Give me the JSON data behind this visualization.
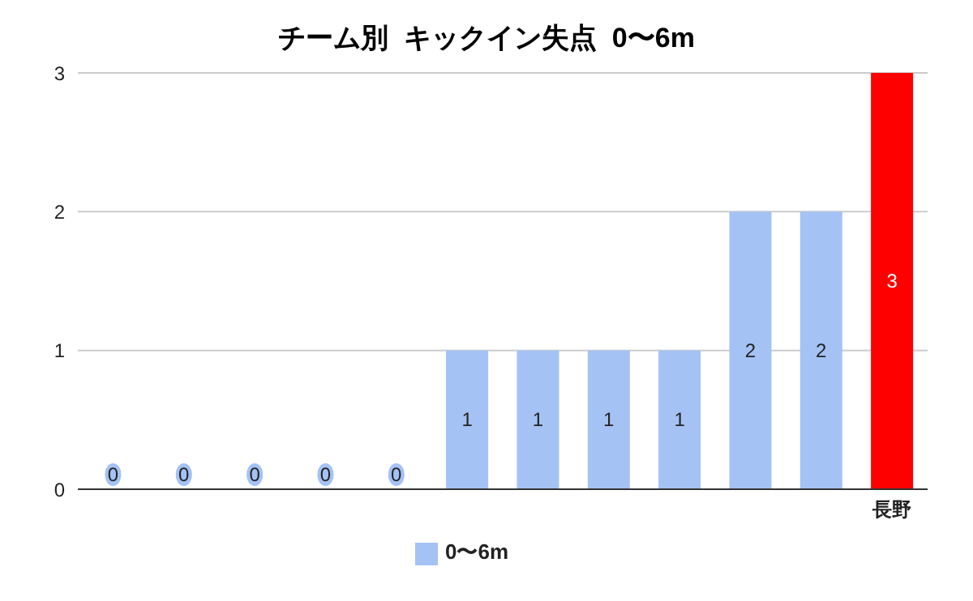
{
  "chart_data": {
    "type": "bar",
    "title": "チーム別  キックイン失点  0〜6m",
    "categories": [
      null,
      null,
      null,
      null,
      null,
      null,
      null,
      null,
      null,
      null,
      null,
      "長野"
    ],
    "series": [
      {
        "name": "0〜6m",
        "color": "#a4c2f4",
        "values": [
          0,
          0,
          0,
          0,
          0,
          1,
          1,
          1,
          1,
          2,
          2,
          3
        ],
        "colors": [
          "#a4c2f4",
          "#a4c2f4",
          "#a4c2f4",
          "#a4c2f4",
          "#a4c2f4",
          "#a4c2f4",
          "#a4c2f4",
          "#a4c2f4",
          "#a4c2f4",
          "#a4c2f4",
          "#a4c2f4",
          "#ff0000"
        ]
      }
    ],
    "ylim": [
      0,
      3
    ],
    "yticks": [
      0,
      1,
      2,
      3
    ],
    "grid": "y",
    "legend": "bottom",
    "data_labels": true
  }
}
